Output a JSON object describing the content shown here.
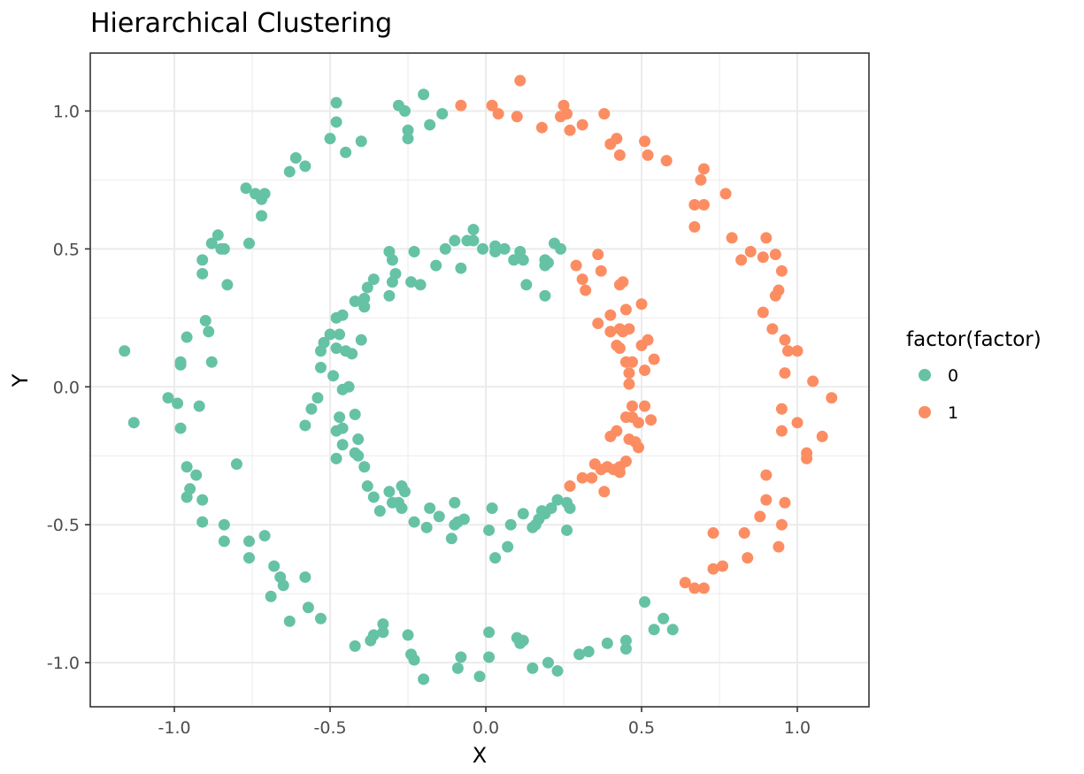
{
  "chart_data": {
    "type": "scatter",
    "title": "Hierarchical Clustering",
    "xlabel": "X",
    "ylabel": "Y",
    "xlim": [
      -1.27,
      1.23
    ],
    "ylim": [
      -1.16,
      1.21
    ],
    "x_ticks": [
      -1.0,
      -0.5,
      0.0,
      0.5,
      1.0
    ],
    "x_tick_labels": [
      "-1.0",
      "-0.5",
      "0.0",
      "0.5",
      "1.0"
    ],
    "y_ticks": [
      -1.0,
      -0.5,
      0.0,
      0.5,
      1.0
    ],
    "y_tick_labels": [
      "-1.0",
      "-0.5",
      "0.0",
      "0.5",
      "1.0"
    ],
    "grid": true,
    "legend": {
      "title": "factor(factor)",
      "position": "right",
      "entries": [
        {
          "label": "0",
          "color": "#66C2A5"
        },
        {
          "label": "1",
          "color": "#FC8D62"
        }
      ]
    },
    "series": [
      {
        "name": "0",
        "color": "#66C2A5",
        "points": [
          [
            -1.16,
            0.13
          ],
          [
            -1.13,
            -0.13
          ],
          [
            -1.02,
            -0.04
          ],
          [
            -0.99,
            -0.06
          ],
          [
            -0.98,
            -0.15
          ],
          [
            -0.98,
            0.09
          ],
          [
            -0.98,
            0.08
          ],
          [
            -0.96,
            0.18
          ],
          [
            -0.92,
            -0.07
          ],
          [
            -0.9,
            0.24
          ],
          [
            -0.89,
            0.2
          ],
          [
            -0.88,
            0.09
          ],
          [
            -0.91,
            0.41
          ],
          [
            -0.91,
            0.46
          ],
          [
            -0.88,
            0.52
          ],
          [
            -0.86,
            0.55
          ],
          [
            -0.85,
            0.5
          ],
          [
            -0.84,
            0.5
          ],
          [
            -0.83,
            0.37
          ],
          [
            -0.77,
            0.72
          ],
          [
            -0.76,
            0.52
          ],
          [
            -0.74,
            0.7
          ],
          [
            -0.72,
            0.68
          ],
          [
            -0.72,
            0.62
          ],
          [
            -0.71,
            0.7
          ],
          [
            -0.63,
            0.78
          ],
          [
            -0.61,
            0.83
          ],
          [
            -0.58,
            0.8
          ],
          [
            -0.5,
            0.9
          ],
          [
            -0.48,
            0.96
          ],
          [
            -0.48,
            1.03
          ],
          [
            -0.45,
            0.85
          ],
          [
            -0.4,
            0.89
          ],
          [
            -0.28,
            1.02
          ],
          [
            -0.26,
            1.0
          ],
          [
            -0.25,
            0.93
          ],
          [
            -0.25,
            0.9
          ],
          [
            -0.2,
            1.06
          ],
          [
            -0.18,
            0.95
          ],
          [
            -0.14,
            0.99
          ],
          [
            -0.96,
            -0.29
          ],
          [
            -0.95,
            -0.37
          ],
          [
            -0.93,
            -0.32
          ],
          [
            -0.96,
            -0.4
          ],
          [
            -0.91,
            -0.41
          ],
          [
            -0.91,
            -0.49
          ],
          [
            -0.84,
            -0.5
          ],
          [
            -0.84,
            -0.56
          ],
          [
            -0.8,
            -0.28
          ],
          [
            -0.76,
            -0.56
          ],
          [
            -0.76,
            -0.62
          ],
          [
            -0.71,
            -0.54
          ],
          [
            -0.69,
            -0.76
          ],
          [
            -0.68,
            -0.65
          ],
          [
            -0.66,
            -0.69
          ],
          [
            -0.65,
            -0.72
          ],
          [
            -0.63,
            -0.85
          ],
          [
            -0.58,
            -0.69
          ],
          [
            -0.57,
            -0.8
          ],
          [
            -0.53,
            -0.84
          ],
          [
            -0.42,
            -0.94
          ],
          [
            -0.37,
            -0.92
          ],
          [
            -0.36,
            -0.9
          ],
          [
            -0.33,
            -0.86
          ],
          [
            -0.33,
            -0.89
          ],
          [
            -0.25,
            -0.9
          ],
          [
            -0.24,
            -0.97
          ],
          [
            -0.23,
            -0.99
          ],
          [
            -0.2,
            -1.06
          ],
          [
            -0.09,
            -1.02
          ],
          [
            -0.08,
            -0.98
          ],
          [
            -0.02,
            -1.05
          ],
          [
            0.01,
            -0.89
          ],
          [
            0.01,
            -0.98
          ],
          [
            0.15,
            -1.02
          ],
          [
            0.1,
            -0.91
          ],
          [
            0.11,
            -0.93
          ],
          [
            0.12,
            -0.92
          ],
          [
            0.2,
            -1.0
          ],
          [
            0.23,
            -1.03
          ],
          [
            0.3,
            -0.97
          ],
          [
            0.33,
            -0.96
          ],
          [
            0.39,
            -0.93
          ],
          [
            0.45,
            -0.92
          ],
          [
            0.45,
            -0.95
          ],
          [
            0.51,
            -0.78
          ],
          [
            0.54,
            -0.88
          ],
          [
            0.57,
            -0.84
          ],
          [
            0.6,
            -0.88
          ],
          [
            -0.58,
            -0.14
          ],
          [
            -0.56,
            -0.08
          ],
          [
            -0.54,
            -0.04
          ],
          [
            -0.53,
            0.07
          ],
          [
            -0.53,
            0.13
          ],
          [
            -0.52,
            0.16
          ],
          [
            -0.5,
            0.19
          ],
          [
            -0.49,
            0.04
          ],
          [
            -0.48,
            0.25
          ],
          [
            -0.47,
            0.19
          ],
          [
            -0.46,
            0.26
          ],
          [
            -0.48,
            0.14
          ],
          [
            -0.46,
            -0.01
          ],
          [
            -0.47,
            -0.11
          ],
          [
            -0.48,
            -0.16
          ],
          [
            -0.46,
            -0.15
          ],
          [
            -0.46,
            -0.21
          ],
          [
            -0.48,
            -0.26
          ],
          [
            -0.45,
            0.13
          ],
          [
            -0.44,
            0.0
          ],
          [
            -0.43,
            0.12
          ],
          [
            -0.42,
            -0.1
          ],
          [
            -0.41,
            -0.19
          ],
          [
            -0.42,
            -0.24
          ],
          [
            -0.41,
            -0.25
          ],
          [
            -0.39,
            -0.29
          ],
          [
            -0.4,
            0.17
          ],
          [
            -0.42,
            0.31
          ],
          [
            -0.39,
            0.32
          ],
          [
            -0.39,
            0.29
          ],
          [
            -0.38,
            0.36
          ],
          [
            -0.36,
            0.39
          ],
          [
            -0.31,
            0.49
          ],
          [
            -0.31,
            0.33
          ],
          [
            -0.3,
            0.46
          ],
          [
            -0.3,
            0.38
          ],
          [
            -0.29,
            0.41
          ],
          [
            -0.24,
            0.38
          ],
          [
            -0.23,
            0.49
          ],
          [
            -0.21,
            0.37
          ],
          [
            -0.16,
            0.44
          ],
          [
            -0.13,
            0.5
          ],
          [
            -0.1,
            0.53
          ],
          [
            -0.08,
            0.43
          ],
          [
            -0.06,
            0.53
          ],
          [
            -0.04,
            0.57
          ],
          [
            -0.04,
            0.53
          ],
          [
            -0.01,
            0.5
          ],
          [
            0.03,
            0.51
          ],
          [
            0.03,
            0.49
          ],
          [
            0.06,
            0.5
          ],
          [
            0.09,
            0.46
          ],
          [
            0.11,
            0.49
          ],
          [
            0.12,
            0.46
          ],
          [
            0.13,
            0.37
          ],
          [
            0.19,
            0.44
          ],
          [
            0.19,
            0.46
          ],
          [
            0.2,
            0.45
          ],
          [
            0.19,
            0.33
          ],
          [
            0.22,
            0.52
          ],
          [
            0.24,
            0.5
          ],
          [
            -0.38,
            -0.36
          ],
          [
            -0.36,
            -0.4
          ],
          [
            -0.34,
            -0.45
          ],
          [
            -0.31,
            -0.38
          ],
          [
            -0.3,
            -0.42
          ],
          [
            -0.28,
            -0.42
          ],
          [
            -0.27,
            -0.44
          ],
          [
            -0.26,
            -0.38
          ],
          [
            -0.27,
            -0.36
          ],
          [
            -0.23,
            -0.49
          ],
          [
            -0.19,
            -0.51
          ],
          [
            -0.18,
            -0.44
          ],
          [
            -0.15,
            -0.47
          ],
          [
            -0.11,
            -0.55
          ],
          [
            -0.1,
            -0.42
          ],
          [
            -0.1,
            -0.5
          ],
          [
            -0.09,
            -0.49
          ],
          [
            -0.07,
            -0.48
          ],
          [
            0.01,
            -0.52
          ],
          [
            0.02,
            -0.44
          ],
          [
            0.03,
            -0.62
          ],
          [
            0.07,
            -0.58
          ],
          [
            0.08,
            -0.5
          ],
          [
            0.12,
            -0.46
          ],
          [
            0.15,
            -0.51
          ],
          [
            0.16,
            -0.5
          ],
          [
            0.17,
            -0.48
          ],
          [
            0.18,
            -0.45
          ],
          [
            0.19,
            -0.46
          ],
          [
            0.21,
            -0.44
          ],
          [
            0.23,
            -0.41
          ],
          [
            0.26,
            -0.42
          ],
          [
            0.26,
            -0.52
          ],
          [
            0.27,
            -0.44
          ]
        ]
      },
      {
        "name": "1",
        "color": "#FC8D62",
        "points": [
          [
            -0.08,
            1.02
          ],
          [
            0.02,
            1.02
          ],
          [
            0.04,
            0.99
          ],
          [
            0.1,
            0.98
          ],
          [
            0.11,
            1.11
          ],
          [
            0.18,
            0.94
          ],
          [
            0.25,
            1.02
          ],
          [
            0.24,
            0.98
          ],
          [
            0.26,
            0.99
          ],
          [
            0.27,
            0.93
          ],
          [
            0.31,
            0.95
          ],
          [
            0.38,
            0.99
          ],
          [
            0.4,
            0.88
          ],
          [
            0.42,
            0.9
          ],
          [
            0.43,
            0.84
          ],
          [
            0.51,
            0.89
          ],
          [
            0.52,
            0.84
          ],
          [
            0.58,
            0.82
          ],
          [
            0.67,
            0.66
          ],
          [
            0.67,
            0.58
          ],
          [
            0.69,
            0.75
          ],
          [
            0.7,
            0.66
          ],
          [
            0.7,
            0.79
          ],
          [
            0.77,
            0.7
          ],
          [
            0.79,
            0.54
          ],
          [
            0.82,
            0.46
          ],
          [
            0.85,
            0.49
          ],
          [
            0.89,
            0.27
          ],
          [
            0.89,
            0.47
          ],
          [
            0.9,
            0.54
          ],
          [
            0.92,
            0.21
          ],
          [
            0.93,
            0.48
          ],
          [
            0.93,
            0.33
          ],
          [
            0.94,
            0.35
          ],
          [
            0.95,
            0.42
          ],
          [
            0.96,
            0.17
          ],
          [
            0.96,
            0.05
          ],
          [
            0.97,
            0.13
          ],
          [
            1.0,
            0.13
          ],
          [
            1.05,
            0.02
          ],
          [
            1.11,
            -0.04
          ],
          [
            0.95,
            -0.08
          ],
          [
            0.95,
            -0.16
          ],
          [
            1.0,
            -0.13
          ],
          [
            1.03,
            -0.24
          ],
          [
            1.03,
            -0.26
          ],
          [
            1.08,
            -0.18
          ],
          [
            0.9,
            -0.32
          ],
          [
            0.9,
            -0.41
          ],
          [
            0.94,
            -0.58
          ],
          [
            0.95,
            -0.5
          ],
          [
            0.96,
            -0.42
          ],
          [
            0.88,
            -0.47
          ],
          [
            0.83,
            -0.53
          ],
          [
            0.84,
            -0.62
          ],
          [
            0.73,
            -0.53
          ],
          [
            0.73,
            -0.66
          ],
          [
            0.76,
            -0.65
          ],
          [
            0.7,
            -0.73
          ],
          [
            0.67,
            -0.73
          ],
          [
            0.64,
            -0.71
          ],
          [
            0.27,
            -0.36
          ],
          [
            0.31,
            -0.33
          ],
          [
            0.34,
            -0.33
          ],
          [
            0.35,
            -0.28
          ],
          [
            0.37,
            -0.3
          ],
          [
            0.38,
            -0.38
          ],
          [
            0.39,
            -0.29
          ],
          [
            0.41,
            -0.3
          ],
          [
            0.43,
            -0.31
          ],
          [
            0.43,
            -0.29
          ],
          [
            0.45,
            -0.27
          ],
          [
            0.46,
            -0.19
          ],
          [
            0.48,
            -0.2
          ],
          [
            0.49,
            -0.22
          ],
          [
            0.49,
            -0.13
          ],
          [
            0.4,
            -0.18
          ],
          [
            0.42,
            -0.16
          ],
          [
            0.45,
            -0.11
          ],
          [
            0.47,
            -0.07
          ],
          [
            0.47,
            -0.11
          ],
          [
            0.51,
            -0.07
          ],
          [
            0.53,
            -0.12
          ],
          [
            0.46,
            0.01
          ],
          [
            0.46,
            0.05
          ],
          [
            0.45,
            0.09
          ],
          [
            0.47,
            0.09
          ],
          [
            0.51,
            0.06
          ],
          [
            0.54,
            0.1
          ],
          [
            0.42,
            0.15
          ],
          [
            0.43,
            0.14
          ],
          [
            0.44,
            0.2
          ],
          [
            0.46,
            0.21
          ],
          [
            0.5,
            0.15
          ],
          [
            0.52,
            0.17
          ],
          [
            0.4,
            0.2
          ],
          [
            0.43,
            0.21
          ],
          [
            0.36,
            0.23
          ],
          [
            0.4,
            0.26
          ],
          [
            0.45,
            0.28
          ],
          [
            0.5,
            0.3
          ],
          [
            0.29,
            0.44
          ],
          [
            0.31,
            0.39
          ],
          [
            0.32,
            0.35
          ],
          [
            0.36,
            0.48
          ],
          [
            0.37,
            0.42
          ],
          [
            0.43,
            0.37
          ],
          [
            0.44,
            0.38
          ]
        ]
      }
    ]
  }
}
